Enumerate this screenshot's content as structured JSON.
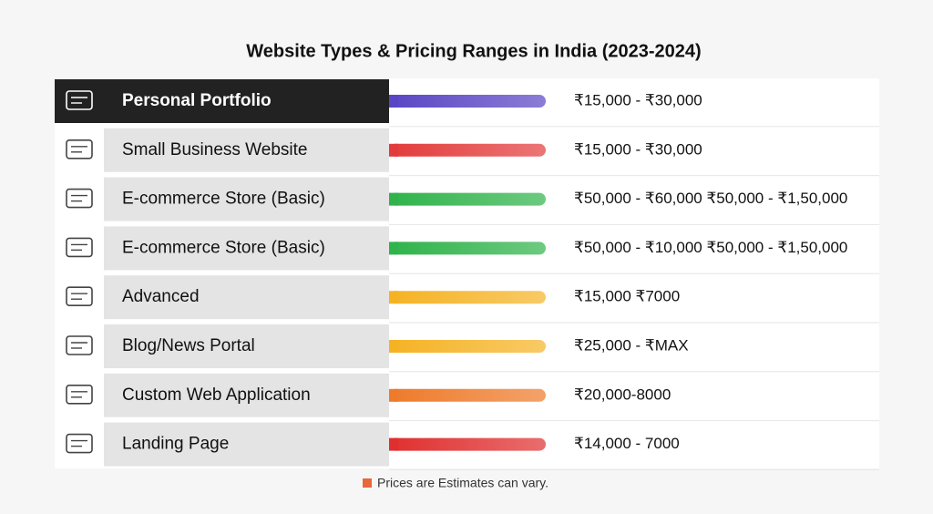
{
  "header": {
    "title": "Website Types & Pricing Ranges in India (2023-2024)"
  },
  "table": {
    "rows": [
      {
        "label": "Personal Portfolio",
        "price": "₹15,000 - ₹30,000",
        "bar_color": "#5a45c4",
        "highlight": true
      },
      {
        "label": "Small Business Website",
        "price": "₹15,000 - ₹30,000",
        "bar_color": "#e33b3b"
      },
      {
        "label": "E-commerce Store (Basic)",
        "price": "₹50,000 - ₹60,000  ₹50,000 - ₹1,50,000",
        "bar_color": "#2fb34a"
      },
      {
        "label": "E-commerce Store (Basic)",
        "price": "₹50,000 - ₹10,000  ₹50,000 - ₹1,50,000",
        "bar_color": "#2fb34a"
      },
      {
        "label": "Advanced",
        "price": "₹15,000 ₹7000",
        "bar_color": "#f5b324"
      },
      {
        "label": "Blog/News Portal",
        "price": "₹25,000 - ₹MAX",
        "bar_color": "#f5b324"
      },
      {
        "label": "Custom Web Application",
        "price": "₹20,000-8000",
        "bar_color": "#ee7a2a"
      },
      {
        "label": "Landing Page",
        "price": "₹14,000 - 7000",
        "bar_color": "#e02f2f"
      }
    ]
  },
  "footer": {
    "note": "Prices are Estimates can vary."
  }
}
